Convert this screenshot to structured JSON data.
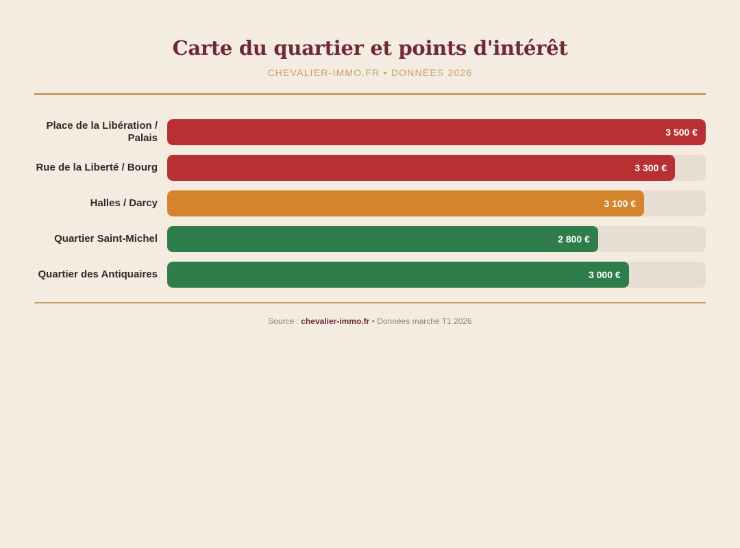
{
  "header": {
    "title": "Carte du quartier et points d'intérêt",
    "subtitle": "CHEVALIER-IMMO.FR • DONNÉES 2026"
  },
  "colors": {
    "background": "#f5ece1",
    "title": "#6e2a3a",
    "accent": "#c4a06a",
    "track": "#e8ddd2",
    "high": "#b83033",
    "mid": "#d4842d",
    "low": "#2e7d4b"
  },
  "chart_data": {
    "type": "bar",
    "orientation": "horizontal",
    "title": "Carte du quartier et points d'intérêt",
    "subtitle": "CHEVALIER-IMMO.FR • DONNÉES 2026",
    "xlabel": "",
    "ylabel": "",
    "unit": "€",
    "xlim": [
      0,
      3500
    ],
    "grid": false,
    "legend": null,
    "categories": [
      "Place de la Libération / Palais",
      "Rue de la Liberté / Bourg",
      "Halles / Darcy",
      "Quartier Saint-Michel",
      "Quartier des Antiquaires"
    ],
    "values": [
      3500,
      3300,
      3100,
      2800,
      3000
    ],
    "value_labels": [
      "3 500 €",
      "3 300 €",
      "3 100 €",
      "2 800 €",
      "3 000 €"
    ],
    "bar_colors": [
      "#b83033",
      "#b83033",
      "#d4842d",
      "#2e7d4b",
      "#2e7d4b"
    ]
  },
  "rows": [
    {
      "label": "Place de la Libération / Palais",
      "value_label": "3 500 €",
      "pct": "100%",
      "color": "#b83033"
    },
    {
      "label": "Rue de la Liberté / Bourg",
      "value_label": "3 300 €",
      "pct": "94.29%",
      "color": "#b83033"
    },
    {
      "label": "Halles / Darcy",
      "value_label": "3 100 €",
      "pct": "88.57%",
      "color": "#d4842d"
    },
    {
      "label": "Quartier Saint-Michel",
      "value_label": "2 800 €",
      "pct": "80%",
      "color": "#2e7d4b"
    },
    {
      "label": "Quartier des Antiquaires",
      "value_label": "3 000 €",
      "pct": "85.71%",
      "color": "#2e7d4b"
    }
  ],
  "footer": {
    "prefix": "Source : ",
    "link": "chevalier-immo.fr",
    "suffix": " • Données marché T1 2026"
  }
}
